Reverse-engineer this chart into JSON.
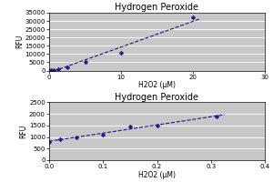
{
  "top": {
    "title": "Hydrogen Peroxide",
    "xlabel": "H2O2 (μM)",
    "ylabel": "RFU",
    "x": [
      0,
      0.31,
      0.63,
      1.25,
      2.5,
      5,
      10,
      20
    ],
    "y": [
      0,
      150,
      400,
      900,
      2200,
      5000,
      10500,
      32000
    ],
    "xlim": [
      0,
      30
    ],
    "ylim": [
      0,
      35000
    ],
    "yticks": [
      0,
      5000,
      10000,
      15000,
      20000,
      25000,
      30000,
      35000
    ],
    "xticks": [
      0,
      10,
      20,
      30
    ]
  },
  "bottom": {
    "title": "Hydrogen Peroxide",
    "xlabel": "H2O2 (μM)",
    "ylabel": "RFU",
    "x": [
      0,
      0.02,
      0.05,
      0.1,
      0.15,
      0.2,
      0.31
    ],
    "y": [
      800,
      900,
      1000,
      1100,
      1450,
      1500,
      1900
    ],
    "xlim": [
      0,
      0.4
    ],
    "ylim": [
      0,
      2500
    ],
    "yticks": [
      0,
      500,
      1000,
      1500,
      2000,
      2500
    ],
    "xticks": [
      0,
      0.1,
      0.2,
      0.3,
      0.4
    ]
  },
  "line_color": "#1a1a8c",
  "marker_color": "#1a1a8c",
  "axes_bg_color": "#c8c8c8",
  "fig_bg": "#ffffff",
  "title_fontsize": 7,
  "label_fontsize": 5.5,
  "tick_fontsize": 5,
  "marker_size": 6
}
